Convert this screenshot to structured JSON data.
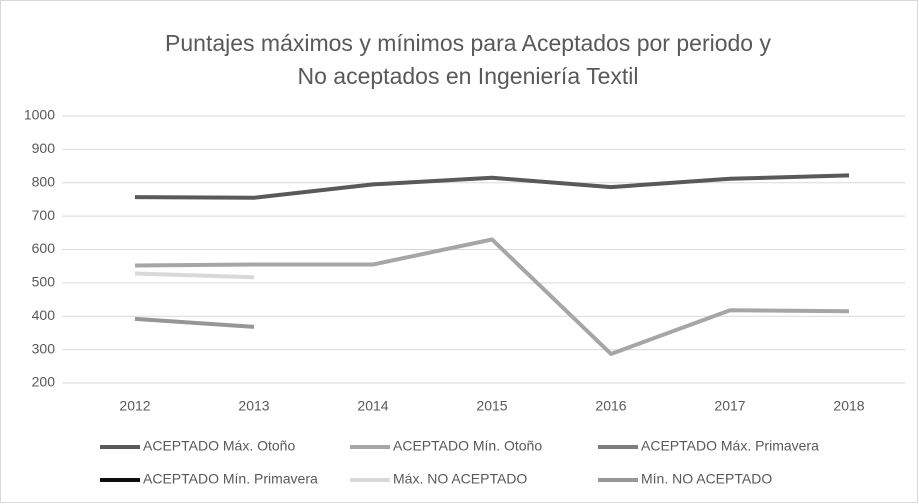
{
  "chart_data": {
    "type": "line",
    "title": [
      "Puntajes máximos y mínimos para Aceptados por periodo y",
      "No aceptados en Ingeniería Textil"
    ],
    "categories": [
      "2012",
      "2013",
      "2014",
      "2015",
      "2016",
      "2017",
      "2018"
    ],
    "series": [
      {
        "name": "ACEPTADO Máx. Otoño",
        "color": "#595959",
        "values": [
          757,
          755,
          795,
          815,
          787,
          812,
          822
        ]
      },
      {
        "name": "ACEPTADO Mín. Otoño",
        "color": "#a6a6a6",
        "values": [
          552,
          555,
          555,
          630,
          287,
          418,
          415
        ]
      },
      {
        "name": "ACEPTADO Máx. Primavera",
        "color": "#7f7f7f",
        "values": [
          null,
          null,
          null,
          null,
          null,
          null,
          null
        ]
      },
      {
        "name": "ACEPTADO Mín. Primavera",
        "color": "#0d0d0d",
        "values": [
          null,
          null,
          null,
          null,
          null,
          null,
          null
        ]
      },
      {
        "name": "Máx. NO ACEPTADO",
        "color": "#d9d9d9",
        "values": [
          528,
          517,
          null,
          null,
          null,
          null,
          null
        ]
      },
      {
        "name": "Mín. NO ACEPTADO",
        "color": "#969696",
        "values": [
          392,
          368,
          null,
          null,
          null,
          null,
          null
        ]
      }
    ],
    "ylim": [
      200,
      1000
    ],
    "yticks": [
      200,
      300,
      400,
      500,
      600,
      700,
      800,
      900,
      1000
    ],
    "grid": true,
    "legend": "bottom"
  }
}
